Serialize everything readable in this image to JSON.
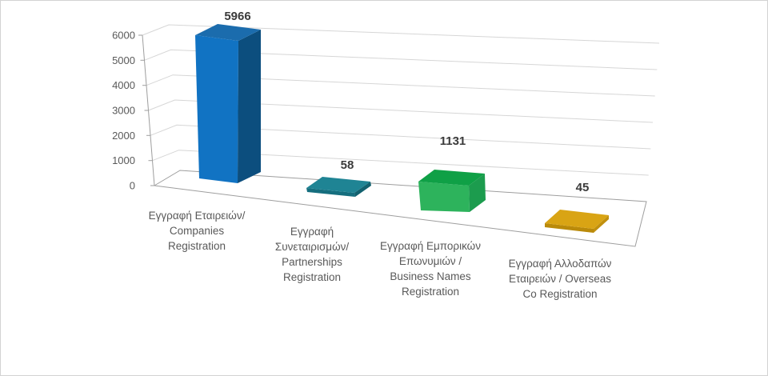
{
  "chart_data": {
    "type": "bar",
    "variant": "3d-column",
    "title": "",
    "categories": [
      "Εγγραφή Εταιρειών/ Companies Registration",
      "Εγγραφή Συνεταιρισμών/ Partnerships Registration",
      "Εγγραφή Εμπορικών Επωνυμιών / Business Names Registration",
      "Εγγραφή Αλλοδαπών Εταιρειών / Overseas Co Registration"
    ],
    "values": [
      5966,
      58,
      1131,
      45
    ],
    "value_labels": [
      "5966",
      "58",
      "1131",
      "45"
    ],
    "category_lines": [
      [
        "Εγγραφή Εταιρειών/",
        "Companies",
        "Registration"
      ],
      [
        "Εγγραφή",
        "Συνεταιρισμών/",
        "Partnerships",
        "Registration"
      ],
      [
        "Εγγραφή Εμπορικών",
        "Επωνυμιών /",
        "Business Names",
        "Registration"
      ],
      [
        "Εγγραφή Αλλοδαπών",
        "Εταιρειών / Overseas",
        "Co Registration"
      ]
    ],
    "y_ticks": [
      "6000",
      "5000",
      "4000",
      "3000",
      "2000",
      "1000",
      "0"
    ],
    "ylim": [
      0,
      6000
    ],
    "grid": true,
    "legend": false,
    "xlabel": "",
    "ylabel": "",
    "bars": [
      {
        "name": "companies-registration",
        "value": 5966,
        "colors": {
          "top": "#1b6cad",
          "front": "#1173c3",
          "side": "#0c4e7e"
        }
      },
      {
        "name": "partnerships-registration",
        "value": 58,
        "colors": {
          "top": "#1f8494",
          "front": "#156e7e",
          "side": "#12616f"
        }
      },
      {
        "name": "business-names-registration",
        "value": 1131,
        "colors": {
          "top": "#0fa046",
          "front": "#2db35c",
          "side": "#1c9c4e"
        }
      },
      {
        "name": "overseas-co-registration",
        "value": 45,
        "colors": {
          "top": "#d9a414",
          "front": "#ba8a0a",
          "side": "#c1900d"
        }
      }
    ],
    "style_colors": {
      "background": "#ffffff",
      "chart_border": "#d3d3d3",
      "gridline": "#d6d6d6",
      "axis_line": "#9e9e9e",
      "tick_text": "#595959",
      "category_text": "#595959",
      "value_text": "#3b3b3b"
    }
  }
}
